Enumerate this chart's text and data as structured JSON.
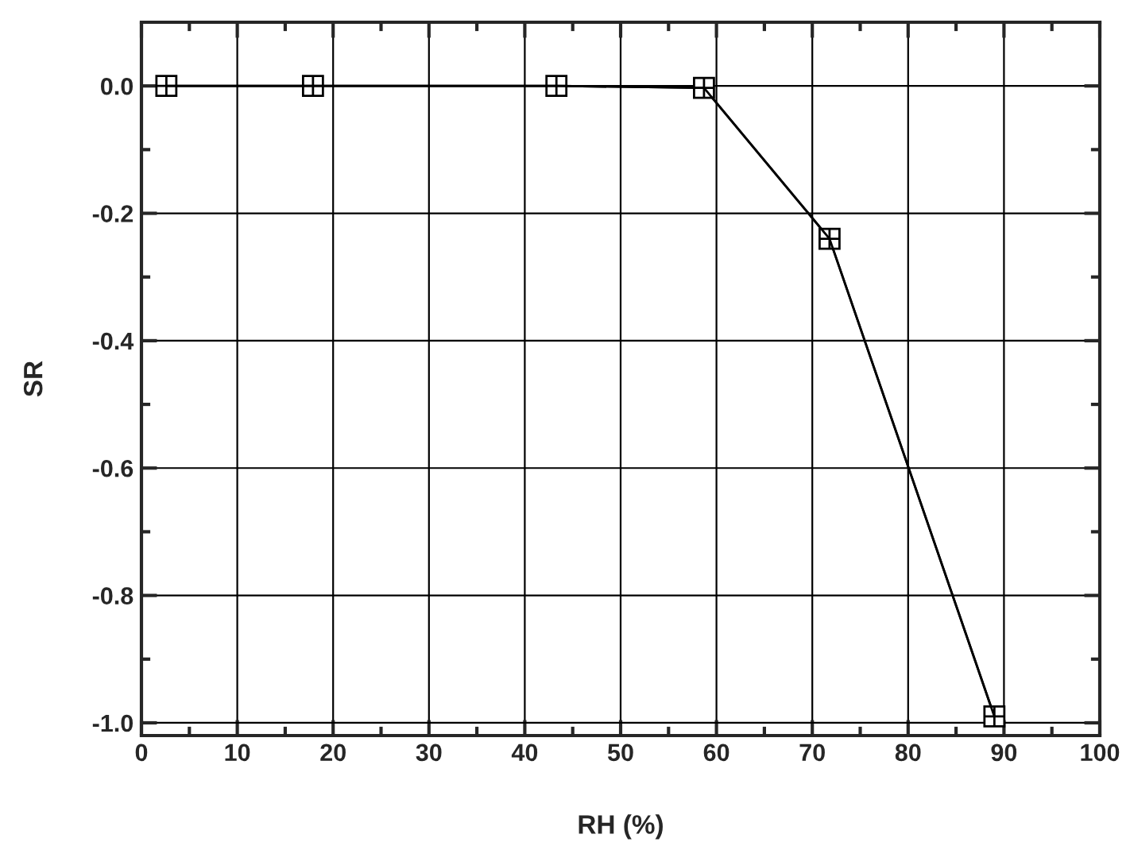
{
  "chart_data": {
    "type": "line",
    "xlabel": "RH (%)",
    "ylabel": "SR",
    "x": [
      2.6,
      17.9,
      43.3,
      58.7,
      71.8,
      89.0
    ],
    "series": [
      {
        "color": "#000000",
        "marker": "square",
        "values": [
          0.0,
          0.0,
          0.0,
          -0.003,
          -0.24,
          -0.99
        ]
      },
      {
        "color": "#000000",
        "marker": "cross",
        "values": [
          0.0,
          0.0,
          0.0,
          -0.003,
          -0.24,
          -0.99
        ]
      }
    ],
    "xlim": [
      0,
      100
    ],
    "xticks": [
      0,
      10,
      20,
      30,
      40,
      50,
      60,
      70,
      80,
      90,
      100
    ],
    "ylim": [
      -1.02,
      0.1
    ],
    "yticks": [
      {
        "value": -1.0,
        "label": "-1.0"
      },
      {
        "value": -0.8,
        "label": "-0.8"
      },
      {
        "value": -0.6,
        "label": "-0.6"
      },
      {
        "value": -0.4,
        "label": "-0.4"
      },
      {
        "value": -0.2,
        "label": "-0.2"
      },
      {
        "value": 0.0,
        "label": "0.0"
      }
    ],
    "grid": true,
    "line_style": "solid"
  }
}
